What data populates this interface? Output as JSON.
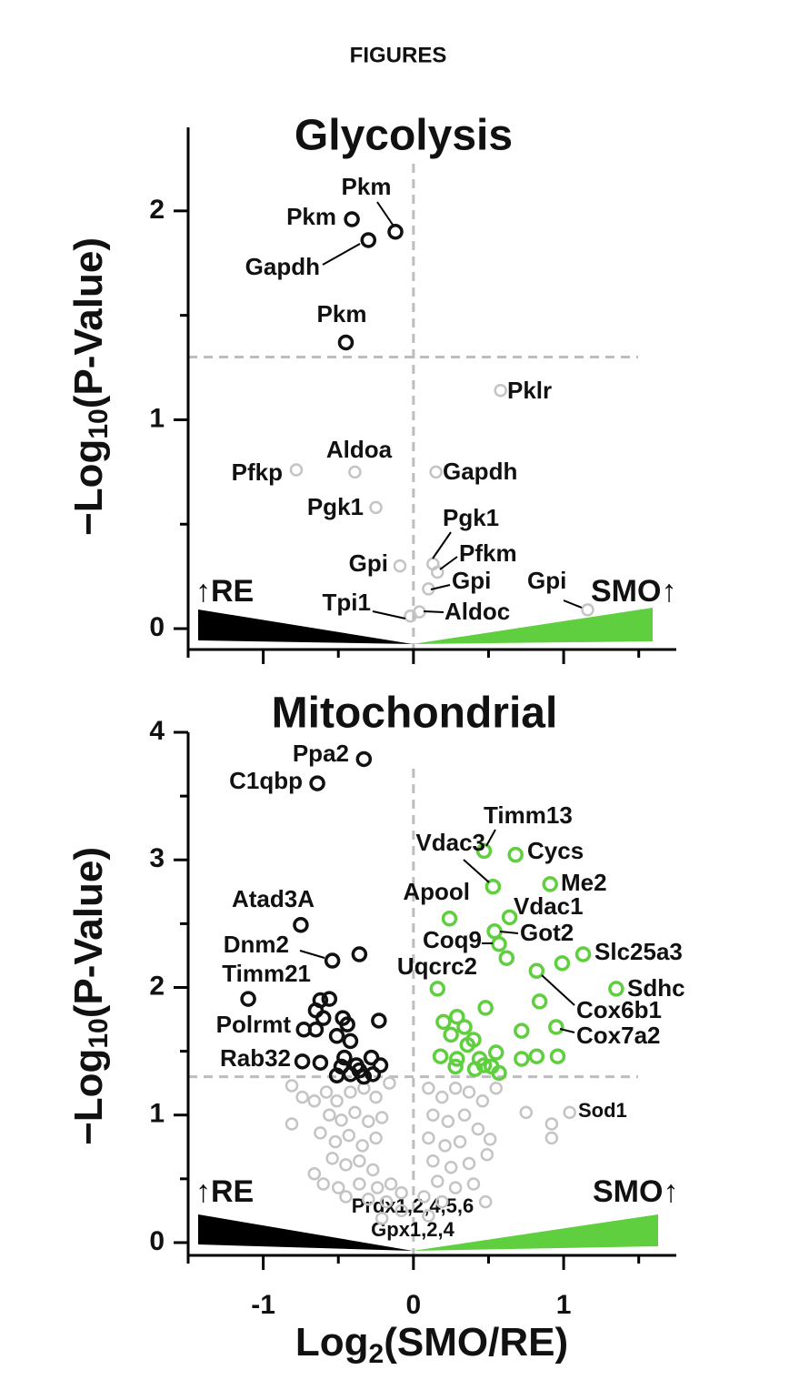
{
  "header": {
    "title": "FIGURES"
  },
  "chart_data": [
    {
      "type": "scatter",
      "title": "Glycolysis",
      "ylabel": [
        "−Log",
        "10",
        "(P-Value)"
      ],
      "xlim": [
        -1.5,
        1.75
      ],
      "ylim": [
        -0.1,
        2.4
      ],
      "xticks": [
        -1,
        0,
        1
      ],
      "xminor": [
        -1.5,
        -0.5,
        0.5,
        1.5
      ],
      "xtick_labels": false,
      "yticks": [
        0,
        1,
        2
      ],
      "yminor": [
        0.5,
        1.5
      ],
      "threshold": {
        "x": 0,
        "y": 1.3
      },
      "annotations": [
        "↑RE",
        "SMO↑"
      ],
      "series": [
        {
          "color": "#111111",
          "x": [
            -0.41,
            -0.12,
            -0.3,
            -0.45
          ],
          "y": [
            1.96,
            1.9,
            1.86,
            1.37
          ],
          "labels": [
            "Pkm",
            "Pkm",
            "Gapdh",
            "Pkm"
          ]
        },
        {
          "color": "#c4c4c4",
          "x": [
            0.58,
            -0.78,
            -0.39,
            0.15,
            -0.25,
            0.13,
            0.16,
            0.1,
            -0.09,
            1.16,
            -0.02,
            0.04
          ],
          "y": [
            1.14,
            0.76,
            0.75,
            0.75,
            0.58,
            0.31,
            0.27,
            0.19,
            0.3,
            0.09,
            0.06,
            0.08
          ],
          "labels": [
            "Pklr",
            "Pfkp",
            "Aldoa",
            "Gapdh",
            "Pgk1",
            "Pgk1",
            "Pfkm",
            "Gpi",
            "Gpi",
            "Gpi",
            "Tpi1",
            "Aldoc"
          ]
        }
      ]
    },
    {
      "type": "scatter",
      "title": "Mitochondrial",
      "ylabel": [
        "−Log",
        "10",
        "(P-Value)"
      ],
      "xlabel": [
        "Log",
        "2",
        "(SMO/RE)"
      ],
      "xlim": [
        -1.5,
        1.75
      ],
      "ylim": [
        -0.1,
        4
      ],
      "xticks": [
        -1,
        0,
        1
      ],
      "xminor": [
        -1.5,
        -0.5,
        0.5,
        1.5
      ],
      "xtick_labels": true,
      "yticks": [
        0,
        1,
        2,
        3,
        4
      ],
      "yminor": [
        0.5,
        1.5,
        2.5,
        3.5
      ],
      "threshold": {
        "x": 0,
        "y": 1.3
      },
      "annotations": [
        "↑RE",
        "SMO↑",
        "Prdx1,2,4,5,6",
        "Gpx1,2,4"
      ],
      "series": [
        {
          "color": "#111111",
          "x": [
            -0.33,
            -0.64,
            -0.75,
            -0.54,
            -1.1,
            -0.73,
            -0.74,
            -0.36,
            -0.62,
            -0.56,
            -0.65,
            -0.6,
            -0.47,
            -0.44,
            -0.65,
            -0.51,
            -0.23,
            -0.42,
            -0.62,
            -0.46,
            -0.38,
            -0.28,
            -0.22,
            -0.48,
            -0.42,
            -0.33,
            -0.27,
            -0.51,
            -0.36
          ],
          "y": [
            3.79,
            3.6,
            2.49,
            2.21,
            1.91,
            1.67,
            1.42,
            2.26,
            1.9,
            1.91,
            1.82,
            1.76,
            1.76,
            1.71,
            1.67,
            1.62,
            1.74,
            1.58,
            1.41,
            1.45,
            1.39,
            1.45,
            1.39,
            1.38,
            1.32,
            1.3,
            1.32,
            1.31,
            1.35
          ],
          "labels": [
            "Ppa2",
            "C1qbp",
            "Atad3A",
            "Dnm2",
            "Timm21",
            "Polrmt",
            "Rab32",
            null,
            null,
            null,
            null,
            null,
            null,
            null,
            null,
            null,
            null,
            null,
            null,
            null,
            null,
            null,
            null,
            null,
            null,
            null,
            null,
            null,
            null
          ]
        },
        {
          "color": "#5fcf3f",
          "x": [
            0.47,
            0.68,
            0.53,
            0.91,
            0.24,
            0.64,
            0.54,
            0.57,
            0.62,
            1.13,
            1.35,
            0.82,
            0.95,
            0.16,
            0.99,
            0.48,
            0.84,
            0.29,
            0.2,
            0.34,
            0.4,
            0.72,
            0.25,
            0.36,
            0.18,
            0.29,
            0.44,
            0.55,
            0.72,
            0.82,
            0.96,
            0.28,
            0.41,
            0.52,
            0.57,
            0.47
          ],
          "y": [
            3.07,
            3.04,
            2.79,
            2.81,
            2.54,
            2.55,
            2.44,
            2.34,
            2.23,
            2.26,
            1.99,
            2.13,
            1.69,
            1.99,
            2.19,
            1.84,
            1.89,
            1.77,
            1.73,
            1.69,
            1.59,
            1.66,
            1.63,
            1.55,
            1.46,
            1.44,
            1.44,
            1.49,
            1.44,
            1.46,
            1.46,
            1.38,
            1.36,
            1.38,
            1.33,
            1.39
          ],
          "labels": [
            "Timm13",
            "Cycs",
            "Vdac3",
            "Me2",
            "Apool",
            "Vdac1",
            "Got2",
            "Coq9",
            "Uqcrc2",
            "Slc25a3",
            "Sdhc",
            "Cox6b1",
            "Cox7a2",
            null,
            null,
            null,
            null,
            null,
            null,
            null,
            null,
            null,
            null,
            null,
            null,
            null,
            null,
            null,
            null,
            null,
            null,
            null,
            null,
            null,
            null,
            null
          ]
        },
        {
          "color": "#c4c4c4",
          "x": [
            1.04,
            -0.81,
            -0.74,
            -0.81,
            -0.66,
            -0.58,
            -0.51,
            -0.42,
            -0.33,
            -0.25,
            -0.16,
            -0.56,
            -0.48,
            -0.39,
            -0.3,
            -0.21,
            -0.62,
            -0.52,
            -0.43,
            -0.34,
            -0.25,
            -0.54,
            -0.45,
            -0.36,
            -0.27,
            -0.66,
            -0.6,
            -0.5,
            -0.36,
            -0.24,
            -0.15,
            -0.45,
            -0.3,
            -0.18,
            -0.08,
            0.1,
            0.19,
            0.28,
            0.37,
            0.46,
            0.55,
            0.75,
            0.92,
            0.92,
            0.13,
            0.23,
            0.34,
            0.43,
            0.1,
            0.21,
            0.31,
            0.51,
            0.49,
            0.13,
            0.25,
            0.37,
            0.16,
            0.28,
            0.4,
            0.07,
            0.19,
            0.1,
            0.48,
            -0.08,
            -0.21
          ],
          "y": [
            1.02,
            1.23,
            1.14,
            0.93,
            1.11,
            1.18,
            1.11,
            1.18,
            1.21,
            1.14,
            1.25,
            1.0,
            0.96,
            1.02,
            0.95,
            0.98,
            0.86,
            0.79,
            0.84,
            0.76,
            0.82,
            0.66,
            0.61,
            0.64,
            0.57,
            0.54,
            0.46,
            0.43,
            0.46,
            0.43,
            0.46,
            0.36,
            0.34,
            0.32,
            0.39,
            1.21,
            1.14,
            1.21,
            1.18,
            1.11,
            1.21,
            1.02,
            0.93,
            0.82,
            1.0,
            0.95,
            1.0,
            0.89,
            0.82,
            0.76,
            0.79,
            0.81,
            0.69,
            0.64,
            0.59,
            0.62,
            0.48,
            0.43,
            0.46,
            0.36,
            0.32,
            0.21,
            0.32,
            0.25,
            0.19
          ],
          "labels": [
            "Sod1",
            null,
            null,
            null,
            null,
            null,
            null,
            null,
            null,
            null,
            null,
            null,
            null,
            null,
            null,
            null,
            null,
            null,
            null,
            null,
            null,
            null,
            null,
            null,
            null,
            null,
            null,
            null,
            null,
            null,
            null,
            null,
            null,
            null,
            null,
            null,
            null,
            null,
            null,
            null,
            null,
            null,
            null,
            null,
            null,
            null,
            null,
            null,
            null,
            null,
            null,
            null,
            null,
            null,
            null,
            null,
            null,
            null,
            null,
            null,
            null,
            null,
            null,
            null,
            null
          ]
        }
      ]
    }
  ]
}
